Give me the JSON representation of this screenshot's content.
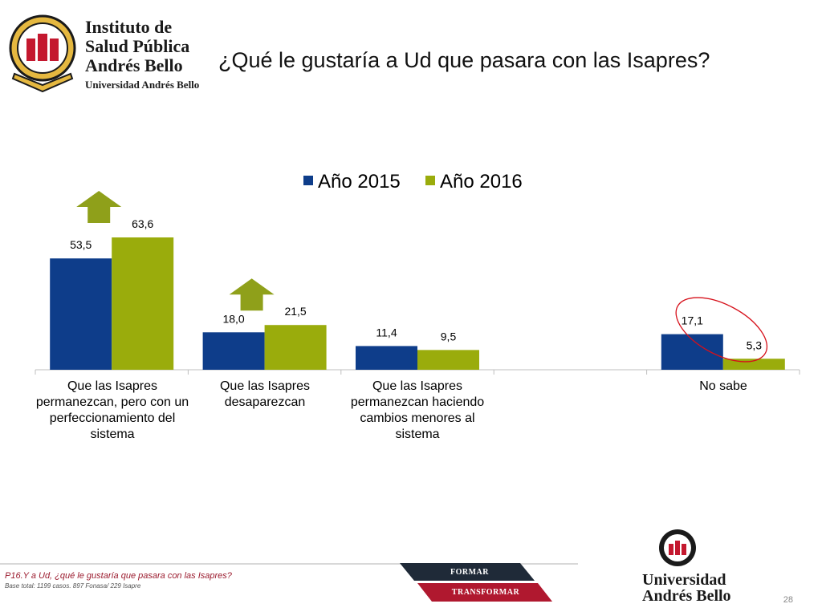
{
  "header": {
    "logo_lines": [
      "Instituto de",
      "Salud Pública",
      "Andrés Bello",
      "Universidad Andrés Bello"
    ],
    "title": "¿Qué le gustaría a Ud que pasara con las Isapres?"
  },
  "chart_data": {
    "type": "bar",
    "categories": [
      "Que las Isapres permanezcan, pero con un perfeccionamiento del sistema",
      "Que las Isapres desaparezcan",
      "Que las Isapres permanezcan haciendo cambios menores al sistema",
      "",
      "No sabe"
    ],
    "series": [
      {
        "name": "Año 2015",
        "color": "#0e3d8a",
        "values": [
          53.5,
          18.0,
          11.4,
          null,
          17.1
        ],
        "labels": [
          "53,5",
          "18,0",
          "11,4",
          "",
          "17,1"
        ]
      },
      {
        "name": "Año 2016",
        "color": "#9aac0c",
        "values": [
          63.6,
          21.5,
          9.5,
          null,
          5.3
        ],
        "labels": [
          "63,6",
          "21,5",
          "9,5",
          "",
          "5,3"
        ]
      }
    ],
    "ylim": [
      0,
      70
    ],
    "grid": false,
    "legend_position": "top",
    "annotations": {
      "up_arrows_categories": [
        0,
        1
      ],
      "down_circle_category": 4,
      "arrow_color": "#8fa01a",
      "circle_color": "#d6101a"
    }
  },
  "footer": {
    "question": "P16.Y a Ud, ¿qué le gustaría que pasara con las Isapres?",
    "base": "Base total: 1199 casos. 897 Fonasa/ 229 Isapre",
    "band_top": "FORMAR",
    "band_bottom": "TRANSFORMAR",
    "university_lines": [
      "Universidad",
      "Andrés Bello"
    ],
    "page_number": "28",
    "colors": {
      "band_dark": "#1f2a38",
      "band_red": "#b0182f"
    }
  }
}
